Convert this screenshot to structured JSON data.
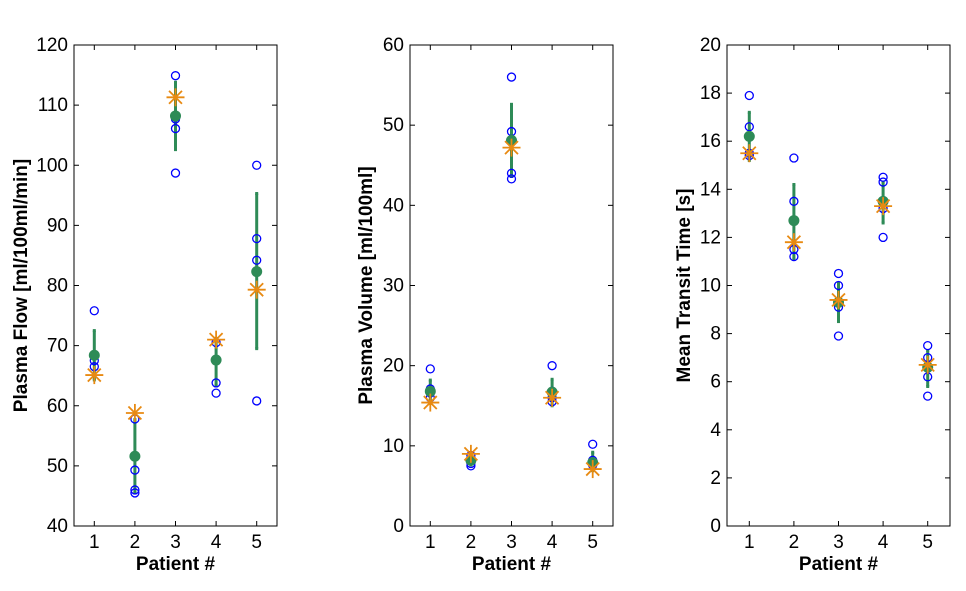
{
  "colors": {
    "individual": "#0000ff",
    "mean": "#2e8b57",
    "reference": "#e88a12",
    "axis": "#000000"
  },
  "chart_data": [
    {
      "type": "scatter",
      "title": "",
      "xlabel": "Patient #",
      "ylabel": "Plasma Flow [ml/100ml/min]",
      "categories": [
        "1",
        "2",
        "3",
        "4",
        "5"
      ],
      "xlim": [
        0.5,
        5.5
      ],
      "ylim": [
        40,
        120
      ],
      "yticks": [
        40,
        50,
        60,
        70,
        80,
        90,
        100,
        110,
        120
      ],
      "grid": false,
      "legend": "none",
      "series": [
        {
          "marker": "open-circle",
          "points": [
            {
              "x": 1,
              "y": [
                75.8,
                68.5,
                67.5,
                66.5
              ]
            },
            {
              "x": 2,
              "y": [
                57.8,
                49.3,
                46.0,
                45.5
              ]
            },
            {
              "x": 3,
              "y": [
                114.9,
                108.0,
                107.7,
                106.1,
                98.7
              ]
            },
            {
              "x": 4,
              "y": [
                70.5,
                63.8,
                62.1
              ]
            },
            {
              "x": 5,
              "y": [
                100.0,
                87.8,
                84.2,
                60.8
              ]
            }
          ]
        },
        {
          "marker": "filled-circle-with-sd-bar",
          "points": [
            {
              "x": 1,
              "y": 68.4,
              "err_low": 64.3,
              "err_high": 72.5
            },
            {
              "x": 2,
              "y": 51.6,
              "err_low": 45.5,
              "err_high": 57.7
            },
            {
              "x": 3,
              "y": 108.2,
              "err_low": 102.6,
              "err_high": 113.8
            },
            {
              "x": 4,
              "y": 67.6,
              "err_low": 63.4,
              "err_high": 71.2
            },
            {
              "x": 5,
              "y": 82.3,
              "err_low": 69.5,
              "err_high": 95.3
            }
          ]
        },
        {
          "marker": "asterisk",
          "points": [
            {
              "x": 1,
              "y": 65.1
            },
            {
              "x": 2,
              "y": 58.8
            },
            {
              "x": 3,
              "y": 111.3
            },
            {
              "x": 4,
              "y": 71.0
            },
            {
              "x": 5,
              "y": 79.3
            }
          ]
        }
      ]
    },
    {
      "type": "scatter",
      "title": "",
      "xlabel": "Patient #",
      "ylabel": "Plasma Volume [ml/100ml]",
      "categories": [
        "1",
        "2",
        "3",
        "4",
        "5"
      ],
      "xlim": [
        0.5,
        5.5
      ],
      "ylim": [
        0,
        60
      ],
      "yticks": [
        0,
        10,
        20,
        30,
        40,
        50,
        60
      ],
      "grid": false,
      "legend": "none",
      "series": [
        {
          "marker": "open-circle",
          "points": [
            {
              "x": 1,
              "y": [
                19.6,
                17.1,
                16.6,
                16.0
              ]
            },
            {
              "x": 2,
              "y": [
                8.8,
                8.2,
                7.8,
                7.5
              ]
            },
            {
              "x": 3,
              "y": [
                56.0,
                49.2,
                44.0,
                43.3
              ]
            },
            {
              "x": 4,
              "y": [
                20.0,
                16.8,
                16.0,
                15.5
              ]
            },
            {
              "x": 5,
              "y": [
                10.2,
                8.2,
                7.8,
                7.6
              ]
            }
          ]
        },
        {
          "marker": "filled-circle-with-sd-bar",
          "points": [
            {
              "x": 1,
              "y": 16.8,
              "err_low": 15.3,
              "err_high": 18.2
            },
            {
              "x": 2,
              "y": 8.2,
              "err_low": 7.6,
              "err_high": 8.8
            },
            {
              "x": 3,
              "y": 48.1,
              "err_low": 43.6,
              "err_high": 52.6
            },
            {
              "x": 4,
              "y": 16.7,
              "err_low": 15.0,
              "err_high": 18.3
            },
            {
              "x": 5,
              "y": 7.9,
              "err_low": 6.9,
              "err_high": 9.2
            }
          ]
        },
        {
          "marker": "asterisk",
          "points": [
            {
              "x": 1,
              "y": 15.4
            },
            {
              "x": 2,
              "y": 9.0
            },
            {
              "x": 3,
              "y": 47.2
            },
            {
              "x": 4,
              "y": 16.0
            },
            {
              "x": 5,
              "y": 7.1
            }
          ]
        }
      ]
    },
    {
      "type": "scatter",
      "title": "",
      "xlabel": "Patient #",
      "ylabel": "Mean Transit Time [s]",
      "categories": [
        "1",
        "2",
        "3",
        "4",
        "5"
      ],
      "xlim": [
        0.5,
        5.5
      ],
      "ylim": [
        0,
        20
      ],
      "yticks": [
        0,
        2,
        4,
        6,
        8,
        10,
        12,
        14,
        16,
        18,
        20
      ],
      "grid": false,
      "legend": "none",
      "series": [
        {
          "marker": "open-circle",
          "points": [
            {
              "x": 1,
              "y": [
                17.9,
                16.6,
                15.5,
                15.4
              ]
            },
            {
              "x": 2,
              "y": [
                15.3,
                13.5,
                11.5,
                11.2
              ]
            },
            {
              "x": 3,
              "y": [
                10.5,
                10.0,
                9.1,
                7.9
              ]
            },
            {
              "x": 4,
              "y": [
                14.5,
                14.3,
                13.2,
                12.0
              ]
            },
            {
              "x": 5,
              "y": [
                7.5,
                7.0,
                6.2,
                5.4
              ]
            }
          ]
        },
        {
          "marker": "filled-circle-with-sd-bar",
          "points": [
            {
              "x": 1,
              "y": 16.2,
              "err_low": 15.2,
              "err_high": 17.2
            },
            {
              "x": 2,
              "y": 12.7,
              "err_low": 11.1,
              "err_high": 14.2
            },
            {
              "x": 3,
              "y": 9.3,
              "err_low": 8.5,
              "err_high": 10.1
            },
            {
              "x": 4,
              "y": 13.5,
              "err_low": 12.6,
              "err_high": 14.3
            },
            {
              "x": 5,
              "y": 6.6,
              "err_low": 5.8,
              "err_high": 7.3
            }
          ]
        },
        {
          "marker": "asterisk",
          "points": [
            {
              "x": 1,
              "y": 15.5
            },
            {
              "x": 2,
              "y": 11.8
            },
            {
              "x": 3,
              "y": 9.4
            },
            {
              "x": 4,
              "y": 13.3
            },
            {
              "x": 5,
              "y": 6.7
            }
          ]
        }
      ]
    }
  ]
}
